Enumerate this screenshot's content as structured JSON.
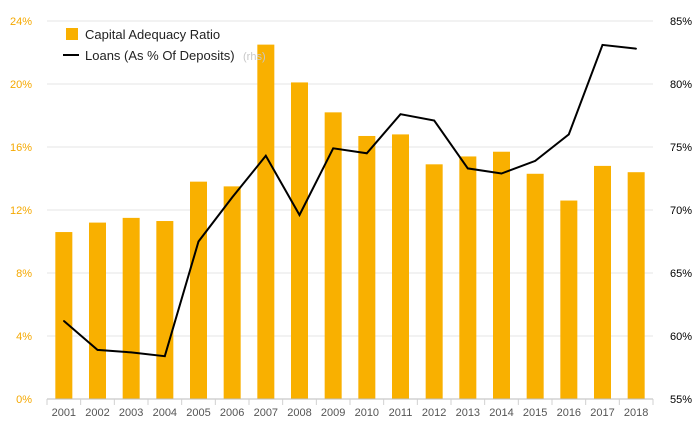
{
  "chart_data": {
    "type": "bar",
    "categories": [
      "2001",
      "2002",
      "2003",
      "2004",
      "2005",
      "2006",
      "2007",
      "2008",
      "2009",
      "2010",
      "2011",
      "2012",
      "2013",
      "2014",
      "2015",
      "2016",
      "2017",
      "2018"
    ],
    "series": [
      {
        "name": "Capital Adequacy Ratio",
        "type": "bar",
        "axis": "left",
        "color": "#f9b000",
        "values": [
          10.6,
          11.2,
          11.5,
          11.3,
          13.8,
          13.5,
          22.5,
          20.1,
          18.2,
          16.7,
          16.8,
          14.9,
          15.4,
          15.7,
          14.3,
          12.6,
          14.8,
          14.4
        ]
      },
      {
        "name": "Loans (As % Of Deposits)",
        "name_suffix": "(rhs)",
        "type": "line",
        "axis": "right",
        "color": "#000000",
        "values": [
          61.2,
          58.9,
          58.7,
          58.4,
          67.5,
          71.0,
          74.3,
          69.6,
          74.9,
          74.5,
          77.6,
          77.1,
          73.3,
          72.9,
          73.9,
          76.0,
          83.1,
          82.8
        ]
      }
    ],
    "ylim_left": [
      0,
      24
    ],
    "ylim_right": [
      55,
      85
    ],
    "yticks_left": [
      "0%",
      "4%",
      "8%",
      "12%",
      "16%",
      "20%",
      "24%"
    ],
    "yticks_right": [
      "55%",
      "60%",
      "65%",
      "70%",
      "75%",
      "80%",
      "85%"
    ],
    "grid": true,
    "legend_position": "top-left"
  }
}
